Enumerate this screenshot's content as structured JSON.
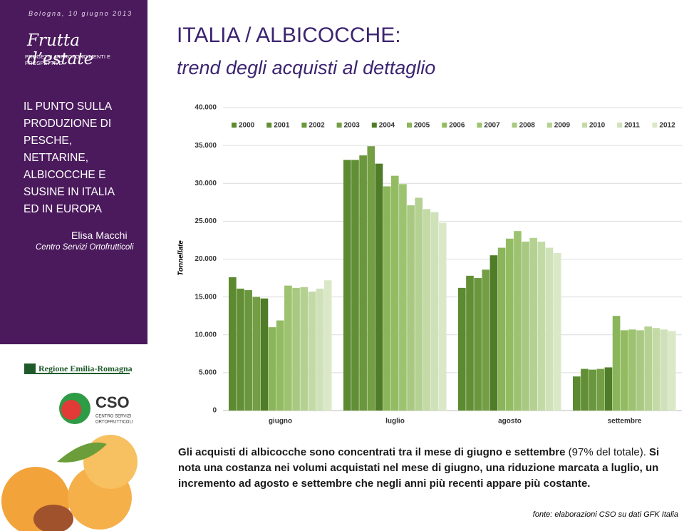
{
  "sidebar": {
    "date": "Bologna, 10 giugno 2013",
    "brand": "Frutta d’estate",
    "tagline": "PROGETTI APPROFONDIMENTI E PROSPETTIVE",
    "title_lines": [
      "IL PUNTO SULLA",
      "PRODUZIONE DI",
      "PESCHE,",
      "NETTARINE,",
      "ALBICOCCHE E",
      "SUSINE IN ITALIA",
      "ED IN EUROPA"
    ],
    "author": "Elisa Macchi",
    "affiliation": "Centro Servizi Ortofrutticoli",
    "logo_region": "Regione Emilia-Romagna",
    "logo_cso": "CSO",
    "logo_cso_sub": [
      "CENTRO SERVIZI",
      "ORTOFRUTTICOLI"
    ]
  },
  "header": {
    "title": "ITALIA / ALBICOCCHE:",
    "subtitle": "trend degli acquisti al dettaglio"
  },
  "chart_data": {
    "type": "bar",
    "y_label": "Tonnellate",
    "categories": [
      "giugno",
      "luglio",
      "agosto",
      "settembre"
    ],
    "series": [
      {
        "name": "2000",
        "color": "#5b8a30",
        "values": [
          17600,
          33100,
          16200,
          4500
        ]
      },
      {
        "name": "2001",
        "color": "#628f36",
        "values": [
          16100,
          33100,
          17800,
          5500
        ]
      },
      {
        "name": "2002",
        "color": "#6a963d",
        "values": [
          15900,
          33700,
          17500,
          5400
        ]
      },
      {
        "name": "2003",
        "color": "#739e44",
        "values": [
          15000,
          34900,
          18600,
          5500
        ]
      },
      {
        "name": "2004",
        "color": "#4f7c26",
        "values": [
          14800,
          32600,
          20500,
          5700
        ]
      },
      {
        "name": "2005",
        "color": "#8bb55a",
        "values": [
          11000,
          29600,
          21500,
          12500
        ]
      },
      {
        "name": "2006",
        "color": "#93bc62",
        "values": [
          11900,
          31000,
          22700,
          10600
        ]
      },
      {
        "name": "2007",
        "color": "#9dc270",
        "values": [
          16500,
          29900,
          23700,
          10700
        ]
      },
      {
        "name": "2008",
        "color": "#a9c983",
        "values": [
          16200,
          27100,
          22300,
          10600
        ]
      },
      {
        "name": "2009",
        "color": "#b5d192",
        "values": [
          16300,
          28100,
          22800,
          11100
        ]
      },
      {
        "name": "2010",
        "color": "#c3daa6",
        "values": [
          15700,
          26600,
          22300,
          10900
        ]
      },
      {
        "name": "2011",
        "color": "#cfe1b8",
        "values": [
          16100,
          26200,
          21500,
          10700
        ]
      },
      {
        "name": "2012",
        "color": "#dae8c8",
        "values": [
          17200,
          24800,
          20800,
          10500
        ]
      }
    ],
    "ylim": [
      0,
      40000
    ],
    "yticks": [
      0,
      {
        "value": 5000,
        "label": "5.000"
      },
      {
        "value": 10000,
        "label": "10.000"
      },
      {
        "value": 15000,
        "label": "15.000"
      },
      {
        "value": 20000,
        "label": "20.000"
      },
      {
        "value": 25000,
        "label": "25.000"
      },
      {
        "value": 30000,
        "label": "30.000"
      },
      {
        "value": 35000,
        "label": "35.000"
      },
      {
        "value": 40000,
        "label": "40.000"
      }
    ],
    "grid": true,
    "legend": "top"
  },
  "caption": {
    "part_1": "Gli acquisti di albicocche sono concentrati tra il mese di giugno e settembre",
    "part_2": "(97% del totale).",
    "part_3": "Si nota una costanza nei volumi acquistati nel mese di giugno, una riduzione marcata a luglio, un incremento ad agosto e settembre che negli anni più recenti appare più costante."
  },
  "source": "fonte: elaborazioni CSO su dati GFK Italia"
}
